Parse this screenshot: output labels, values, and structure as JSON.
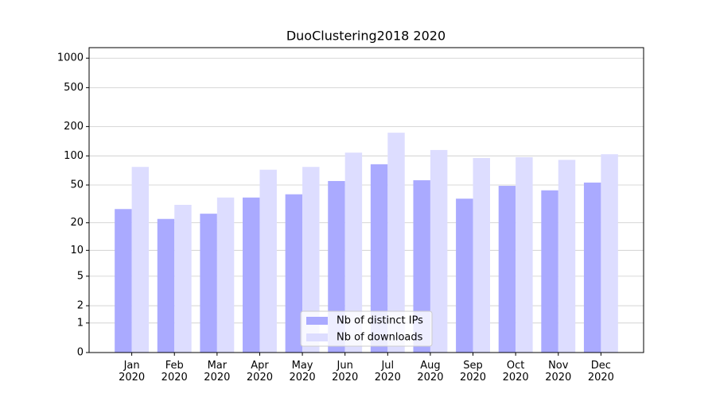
{
  "chart_data": {
    "type": "bar",
    "title": "DuoClustering2018 2020",
    "categories": [
      "Jan 2020",
      "Feb 2020",
      "Mar 2020",
      "Apr 2020",
      "May 2020",
      "Jun 2020",
      "Jul 2020",
      "Aug 2020",
      "Sep 2020",
      "Oct 2020",
      "Nov 2020",
      "Dec 2020"
    ],
    "series": [
      {
        "name": "Nb of distinct IPs",
        "color": "#aaaaff",
        "values": [
          28,
          22,
          25,
          37,
          40,
          55,
          82,
          56,
          36,
          49,
          44,
          53
        ]
      },
      {
        "name": "Nb of downloads",
        "color": "#ddddff",
        "values": [
          77,
          31,
          37,
          72,
          77,
          108,
          173,
          115,
          95,
          97,
          91,
          104
        ]
      }
    ],
    "yscale": "log1p",
    "ylim": [
      0,
      1280
    ],
    "yticks": [
      0,
      1,
      2,
      5,
      10,
      20,
      50,
      100,
      200,
      500,
      1000
    ],
    "grid": true,
    "legend": "lower center"
  }
}
